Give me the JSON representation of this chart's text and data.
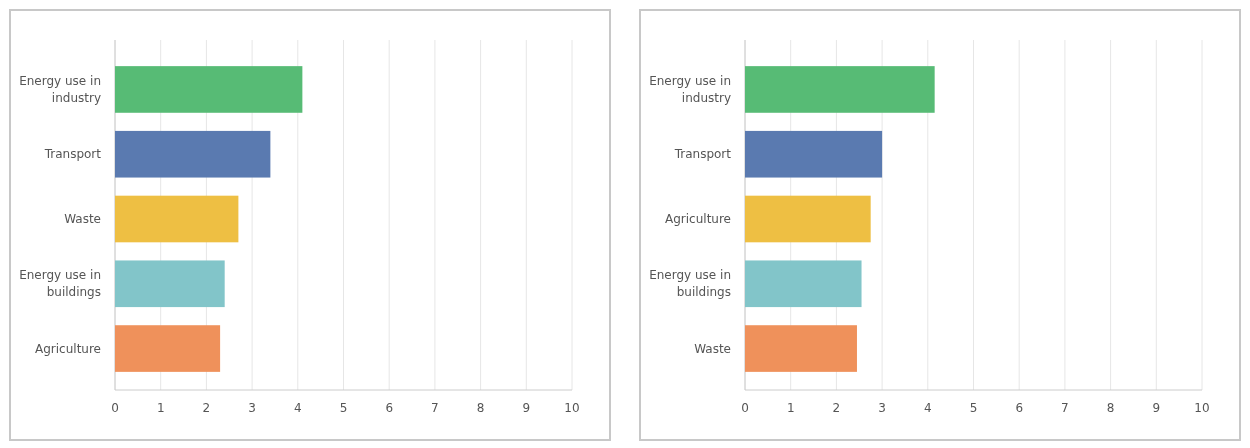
{
  "chart_data": [
    {
      "type": "bar",
      "orientation": "horizontal",
      "categories": [
        "Energy use in\nindustry",
        "Transport",
        "Waste",
        "Energy use in\nbuildings",
        "Agriculture"
      ],
      "values": [
        4.1,
        3.4,
        2.7,
        2.4,
        2.3
      ],
      "colors": [
        "#57bb75",
        "#5a7ab0",
        "#eebf43",
        "#82c5c9",
        "#ef915b"
      ],
      "xlim": [
        0,
        10
      ],
      "xticks": [
        0,
        1,
        2,
        3,
        4,
        5,
        6,
        7,
        8,
        9,
        10
      ],
      "grid": "x"
    },
    {
      "type": "bar",
      "orientation": "horizontal",
      "categories": [
        "Energy use in\nindustry",
        "Transport",
        "Agriculture",
        "Energy use in\nbuildings",
        "Waste"
      ],
      "values": [
        4.15,
        3.0,
        2.75,
        2.55,
        2.45
      ],
      "colors": [
        "#57bb75",
        "#5a7ab0",
        "#eebf43",
        "#82c5c9",
        "#ef915b"
      ],
      "xlim": [
        0,
        10
      ],
      "xticks": [
        0,
        1,
        2,
        3,
        4,
        5,
        6,
        7,
        8,
        9,
        10
      ],
      "grid": "x"
    }
  ]
}
